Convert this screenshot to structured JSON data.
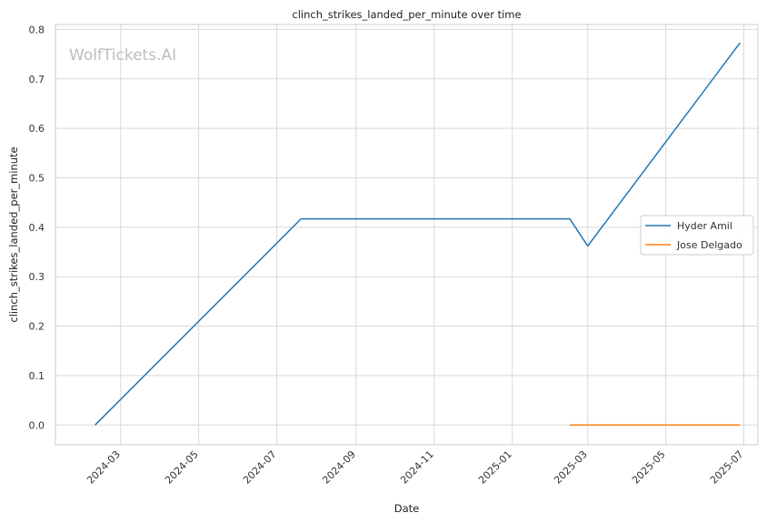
{
  "chart_data": {
    "type": "line",
    "title": "clinch_strikes_landed_per_minute over time",
    "xlabel": "Date",
    "ylabel": "clinch_strikes_landed_per_minute",
    "watermark": "WolfTickets.AI",
    "xlim": [
      "2024-01-10",
      "2025-07-12"
    ],
    "ylim": [
      -0.04,
      0.81
    ],
    "x_ticks": [
      "2024-03",
      "2024-05",
      "2024-07",
      "2024-09",
      "2024-11",
      "2025-01",
      "2025-03",
      "2025-05",
      "2025-07"
    ],
    "y_ticks": [
      0.0,
      0.1,
      0.2,
      0.3,
      0.4,
      0.5,
      0.6,
      0.7,
      0.8
    ],
    "y_tick_labels": [
      "0.0",
      "0.1",
      "0.2",
      "0.3",
      "0.4",
      "0.5",
      "0.6",
      "0.7",
      "0.8"
    ],
    "grid": true,
    "legend_position": "center-right",
    "series": [
      {
        "name": "Hyder Amil",
        "color": "#1f77b4",
        "x": [
          "2024-02-10",
          "2024-07-20",
          "2025-02-15",
          "2025-03-01",
          "2025-06-28"
        ],
        "y": [
          0.0,
          0.417,
          0.417,
          0.362,
          0.773
        ]
      },
      {
        "name": "Jose Delgado",
        "color": "#ff7f0e",
        "x": [
          "2025-02-15",
          "2025-06-28"
        ],
        "y": [
          0.0,
          0.0
        ]
      }
    ]
  }
}
